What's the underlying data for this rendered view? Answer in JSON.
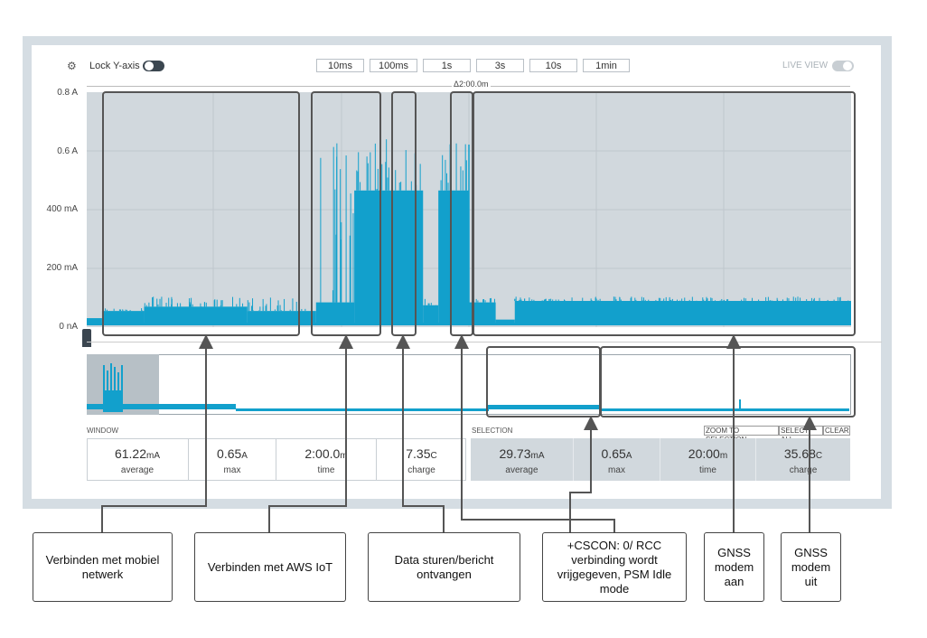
{
  "toolbar": {
    "lock_label": "Lock Y-axis",
    "live_label": "LIVE VIEW",
    "timespans": [
      "10ms",
      "100ms",
      "1s",
      "3s",
      "10s",
      "1min"
    ],
    "delta_label": "Δ2:00.0m"
  },
  "chart_data": {
    "type": "line",
    "series": [
      {
        "name": "",
        "values": []
      }
    ],
    "y_tick_labels": [
      "0.8 A",
      "0.6 A",
      "400 mA",
      "200 mA",
      "0 nA"
    ],
    "y_ticks": [
      0.8,
      0.6,
      0.4,
      0.2,
      0.0
    ],
    "ylim": [
      0,
      0.8
    ],
    "grid": true,
    "segments": [
      {
        "from": 0.0,
        "to": 0.02,
        "base": 0.025,
        "spike": 0.0
      },
      {
        "from": 0.02,
        "to": 0.075,
        "base": 0.05,
        "spike": 0.06
      },
      {
        "from": 0.075,
        "to": 0.21,
        "base": 0.065,
        "spike": 0.1
      },
      {
        "from": 0.21,
        "to": 0.3,
        "base": 0.05,
        "spike": 0.1
      },
      {
        "from": 0.3,
        "to": 0.35,
        "base": 0.08,
        "spike": 0.64
      },
      {
        "from": 0.35,
        "to": 0.44,
        "base": 0.47,
        "spike": 0.65
      },
      {
        "from": 0.44,
        "to": 0.46,
        "base": 0.07,
        "spike": 0.1
      },
      {
        "from": 0.46,
        "to": 0.5,
        "base": 0.47,
        "spike": 0.64
      },
      {
        "from": 0.5,
        "to": 0.5,
        "base": 0.07,
        "spike": 0.09
      },
      {
        "from": 0.5,
        "to": 0.535,
        "base": 0.08,
        "spike": 0.1
      },
      {
        "from": 0.535,
        "to": 0.56,
        "base": 0.02,
        "spike": 0.0
      },
      {
        "from": 0.56,
        "to": 1.0,
        "base": 0.085,
        "spike": 0.1
      }
    ]
  },
  "window": {
    "label": "WINDOW",
    "stats": [
      {
        "value": "61.22",
        "unit": "mA",
        "label": "average"
      },
      {
        "value": "0.65",
        "unit": "A",
        "label": "max"
      },
      {
        "value": "2:00.0",
        "unit": "m",
        "label": "time"
      },
      {
        "value": "7.35",
        "unit": "C",
        "label": "charge"
      }
    ]
  },
  "selection": {
    "label": "SELECTION",
    "buttons": [
      "ZOOM TO SELECTION",
      "SELECT ALL",
      "CLEAR"
    ],
    "stats": [
      {
        "value": "29.73",
        "unit": "mA",
        "label": "average"
      },
      {
        "value": "0.65",
        "unit": "A",
        "label": "max"
      },
      {
        "value": "20:00",
        "unit": "m",
        "label": "time"
      },
      {
        "value": "35.68",
        "unit": "C",
        "label": "charge"
      }
    ]
  },
  "callouts": [
    "Verbinden met mobiel netwerk",
    "Verbinden met AWS IoT",
    "Data sturen/bericht ontvangen",
    "+CSCON: 0/ RCC verbinding wordt vrijgegeven, PSM Idle mode",
    "GNSS modem aan",
    "GNSS modem uit"
  ],
  "colors": {
    "trace": "#12a0cc",
    "plot_bg": "#d1d8dd",
    "frame": "#d5dde3",
    "callout_line": "#555555"
  }
}
